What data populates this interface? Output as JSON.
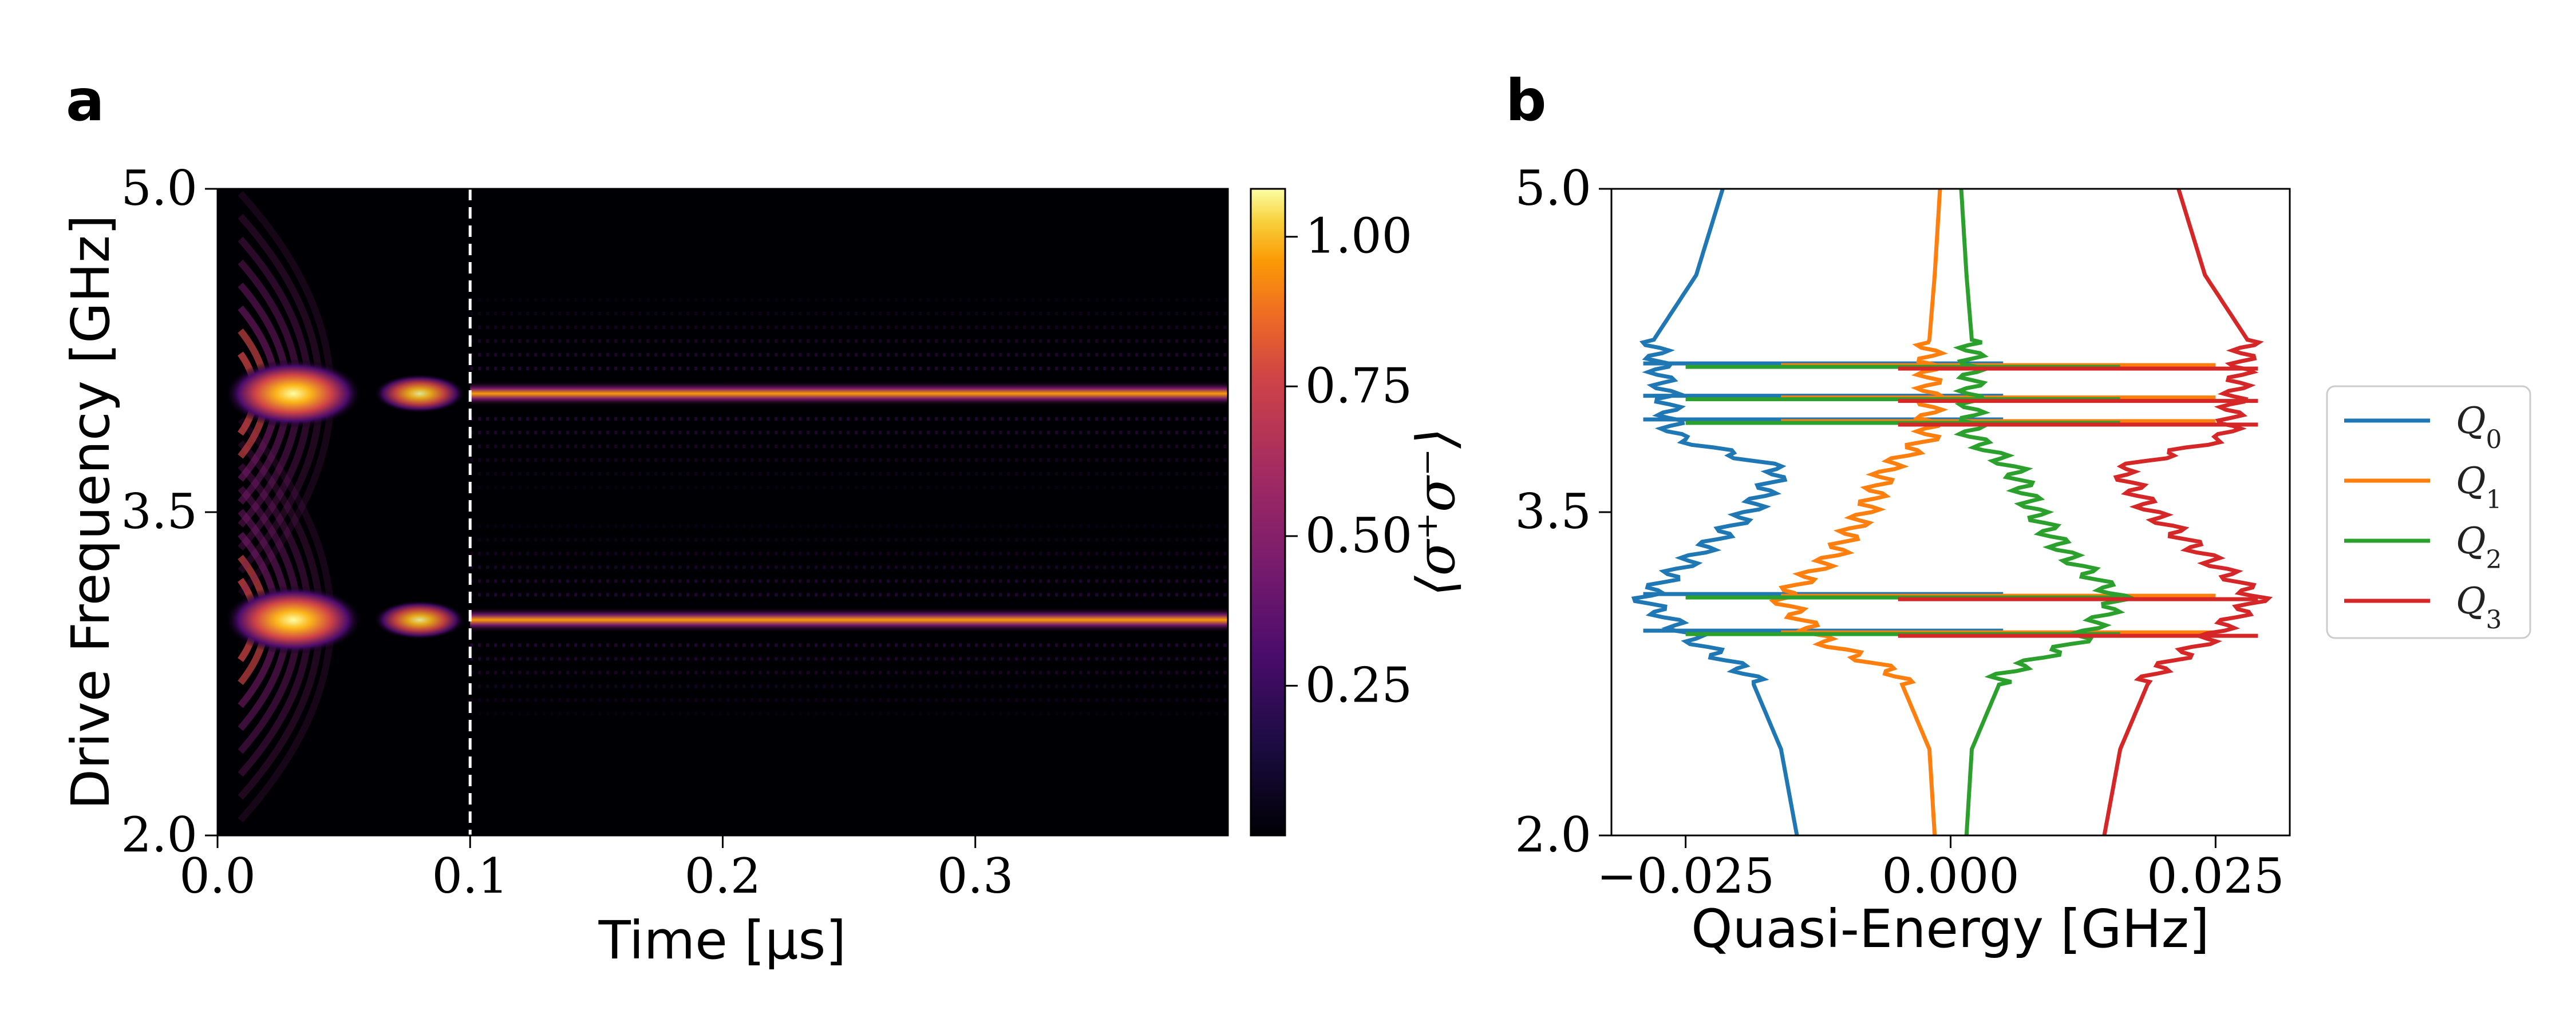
{
  "chart_data": [
    {
      "panel": "a",
      "type": "heatmap",
      "xlabel": "Time [μs]",
      "ylabel": "Drive Frequency [GHz]",
      "xlim": [
        0.0,
        0.4
      ],
      "ylim": [
        2.0,
        5.0
      ],
      "x_ticks": [
        "0.0",
        "0.1",
        "0.2",
        "0.3"
      ],
      "x_tick_values": [
        0.0,
        0.1,
        0.2,
        0.3
      ],
      "y_ticks": [
        "2.0",
        "3.5",
        "5.0"
      ],
      "y_tick_values": [
        2.0,
        3.5,
        5.0
      ],
      "vline_x": 0.1,
      "resonances_ghz": [
        3.0,
        4.05
      ],
      "colorbar": {
        "label": "⟨σ⁺σ⁻⟩",
        "range": [
          0.0,
          1.08
        ],
        "ticks": [
          "0.25",
          "0.50",
          "0.75",
          "1.00"
        ],
        "tick_values": [
          0.25,
          0.5,
          0.75,
          1.0
        ],
        "colormap": "inferno"
      }
    },
    {
      "panel": "b",
      "type": "line",
      "xlabel": "Quasi-Energy [GHz]",
      "xlim": [
        -0.032,
        0.032
      ],
      "ylim": [
        2.0,
        5.0
      ],
      "x_ticks": [
        "−0.025",
        "0.000",
        "0.025"
      ],
      "x_tick_values": [
        -0.025,
        0.0,
        0.025
      ],
      "y_ticks": [
        "2.0",
        "3.5",
        "5.0"
      ],
      "y_tick_values": [
        2.0,
        3.5,
        5.0
      ],
      "legend_placement": "right",
      "series": [
        {
          "name": "Q",
          "sub": "0",
          "color": "#1f77b4",
          "y": [
            2.0,
            2.4,
            2.75,
            2.9,
            3.1,
            3.3,
            3.5,
            3.7,
            3.85,
            4.3,
            4.6,
            5.0
          ],
          "x": [
            -0.0145,
            -0.016,
            -0.019,
            -0.024,
            -0.029,
            -0.024,
            -0.019,
            -0.016,
            -0.026,
            -0.028,
            -0.024,
            -0.0215
          ]
        },
        {
          "name": "Q",
          "sub": "1",
          "color": "#ff7f0e",
          "y": [
            2.0,
            2.4,
            2.75,
            2.9,
            3.1,
            3.3,
            3.5,
            3.7,
            3.85,
            4.3,
            4.6,
            5.0
          ],
          "x": [
            -0.0015,
            -0.002,
            -0.005,
            -0.012,
            -0.016,
            -0.011,
            -0.008,
            -0.006,
            -0.002,
            -0.002,
            -0.0015,
            -0.001
          ]
        },
        {
          "name": "Q",
          "sub": "2",
          "color": "#2ca02c",
          "y": [
            2.0,
            2.4,
            2.75,
            2.9,
            3.1,
            3.3,
            3.5,
            3.7,
            3.85,
            4.3,
            4.6,
            5.0
          ],
          "x": [
            0.0015,
            0.002,
            0.005,
            0.012,
            0.016,
            0.011,
            0.008,
            0.006,
            0.002,
            0.002,
            0.0015,
            0.001
          ]
        },
        {
          "name": "Q",
          "sub": "3",
          "color": "#d62728",
          "y": [
            2.0,
            2.4,
            2.75,
            2.9,
            3.1,
            3.3,
            3.5,
            3.7,
            3.85,
            4.3,
            4.6,
            5.0
          ],
          "x": [
            0.0145,
            0.016,
            0.019,
            0.024,
            0.029,
            0.024,
            0.019,
            0.016,
            0.026,
            0.028,
            0.024,
            0.0215
          ]
        }
      ]
    }
  ]
}
